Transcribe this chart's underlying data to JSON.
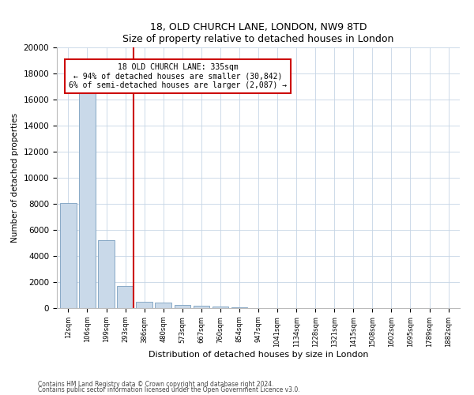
{
  "title": "18, OLD CHURCH LANE, LONDON, NW9 8TD",
  "subtitle": "Size of property relative to detached houses in London",
  "xlabel": "Distribution of detached houses by size in London",
  "ylabel": "Number of detached properties",
  "footnote1": "Contains HM Land Registry data © Crown copyright and database right 2024.",
  "footnote2": "Contains public sector information licensed under the Open Government Licence v3.0.",
  "annotation_line1": "18 OLD CHURCH LANE: 335sqm",
  "annotation_line2": "← 94% of detached houses are smaller (30,842)",
  "annotation_line3": "6% of semi-detached houses are larger (2,087) →",
  "bar_color": "#c9d9e9",
  "bar_edge_color": "#7a9fbf",
  "vline_color": "#cc0000",
  "annotation_box_color": "#cc0000",
  "categories": [
    "12sqm",
    "106sqm",
    "199sqm",
    "293sqm",
    "386sqm",
    "480sqm",
    "573sqm",
    "667sqm",
    "760sqm",
    "854sqm",
    "947sqm",
    "1041sqm",
    "1134sqm",
    "1228sqm",
    "1321sqm",
    "1415sqm",
    "1508sqm",
    "1602sqm",
    "1695sqm",
    "1789sqm",
    "1882sqm"
  ],
  "values": [
    8050,
    16500,
    5200,
    1700,
    500,
    420,
    230,
    170,
    120,
    80,
    0,
    0,
    0,
    0,
    0,
    0,
    0,
    0,
    0,
    0,
    0
  ],
  "ylim": [
    0,
    20000
  ],
  "yticks": [
    0,
    2000,
    4000,
    6000,
    8000,
    10000,
    12000,
    14000,
    16000,
    18000,
    20000
  ],
  "vline_x": 3.45,
  "figwidth": 6.0,
  "figheight": 5.0,
  "dpi": 100
}
